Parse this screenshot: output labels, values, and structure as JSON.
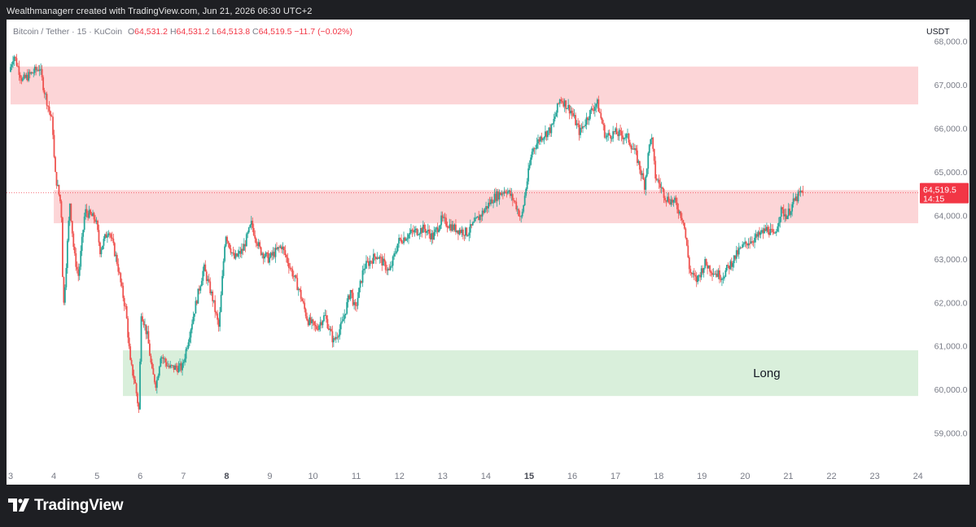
{
  "header": {
    "attribution": "Wealthmanagerr created with TradingView.com, Jun 21, 2026 06:30 UTC+2"
  },
  "legend": {
    "symbol": "Bitcoin / Tether · 15 · KuCoin",
    "o_label": "O",
    "o_value": "64,531.2",
    "h_label": "H",
    "h_value": "64,531.2",
    "l_label": "L",
    "l_value": "64,513.8",
    "c_label": "C",
    "c_value": "64,519.5",
    "change": "−11.7 (−0.02%)"
  },
  "price_axis": {
    "currency": "USDT",
    "last_price": "64,519.5",
    "countdown": "14:15"
  },
  "footer": {
    "brand": "TradingView"
  },
  "colors": {
    "up": "#26a69a",
    "down": "#ef5350",
    "resistance_zone": "#fcd5d7",
    "support_zone": "#d9efdb",
    "last_price_tag": "#f23645"
  },
  "chart_data": {
    "type": "candlestick",
    "ylim": [
      58300,
      68500
    ],
    "xlim": [
      3.0,
      24.1
    ],
    "y_ticks": [
      {
        "value": 59000,
        "label": "59,000.0"
      },
      {
        "value": 60000,
        "label": "60,000.0"
      },
      {
        "value": 61000,
        "label": "61,000.0"
      },
      {
        "value": 62000,
        "label": "62,000.0"
      },
      {
        "value": 63000,
        "label": "63,000.0"
      },
      {
        "value": 64000,
        "label": "64,000.0"
      },
      {
        "value": 65000,
        "label": "65,000.0"
      },
      {
        "value": 66000,
        "label": "66,000.0"
      },
      {
        "value": 67000,
        "label": "67,000.0"
      },
      {
        "value": 68000,
        "label": "68,000.0"
      }
    ],
    "x_ticks": [
      {
        "value": 3,
        "label": "3",
        "bold": false
      },
      {
        "value": 4,
        "label": "4",
        "bold": false
      },
      {
        "value": 5,
        "label": "5",
        "bold": false
      },
      {
        "value": 6,
        "label": "6",
        "bold": false
      },
      {
        "value": 7,
        "label": "7",
        "bold": false
      },
      {
        "value": 8,
        "label": "8",
        "bold": true
      },
      {
        "value": 9,
        "label": "9",
        "bold": false
      },
      {
        "value": 10,
        "label": "10",
        "bold": false
      },
      {
        "value": 11,
        "label": "11",
        "bold": false
      },
      {
        "value": 12,
        "label": "12",
        "bold": false
      },
      {
        "value": 13,
        "label": "13",
        "bold": false
      },
      {
        "value": 14,
        "label": "14",
        "bold": false
      },
      {
        "value": 15,
        "label": "15",
        "bold": true
      },
      {
        "value": 16,
        "label": "16",
        "bold": false
      },
      {
        "value": 17,
        "label": "17",
        "bold": false
      },
      {
        "value": 18,
        "label": "18",
        "bold": false
      },
      {
        "value": 19,
        "label": "19",
        "bold": false
      },
      {
        "value": 20,
        "label": "20",
        "bold": false
      },
      {
        "value": 21,
        "label": "21",
        "bold": false
      },
      {
        "value": 22,
        "label": "22",
        "bold": false
      },
      {
        "value": 23,
        "label": "23",
        "bold": false
      },
      {
        "value": 24,
        "label": "24",
        "bold": false
      }
    ],
    "last_price": 64519.5,
    "zones": [
      {
        "name": "resistance-upper",
        "x_start": 3.0,
        "x_end": 24.1,
        "y_low": 66550,
        "y_high": 67420,
        "color": "#fcd5d7"
      },
      {
        "name": "resistance-middle",
        "x_start": 4.0,
        "x_end": 24.1,
        "y_low": 63820,
        "y_high": 64580,
        "color": "#fcd5d7"
      },
      {
        "name": "support",
        "x_start": 5.6,
        "x_end": 24.1,
        "y_low": 59850,
        "y_high": 60900,
        "color": "#d9efdb"
      }
    ],
    "annotations": [
      {
        "text": "Long",
        "x": 20.5,
        "y": 60280
      }
    ],
    "price_path": [
      [
        3.0,
        67300
      ],
      [
        3.1,
        67700
      ],
      [
        3.3,
        67100
      ],
      [
        3.5,
        67250
      ],
      [
        3.7,
        67400
      ],
      [
        3.8,
        66900
      ],
      [
        4.0,
        66100
      ],
      [
        4.05,
        65000
      ],
      [
        4.2,
        64200
      ],
      [
        4.25,
        61800
      ],
      [
        4.4,
        64300
      ],
      [
        4.5,
        63100
      ],
      [
        4.6,
        62600
      ],
      [
        4.75,
        64100
      ],
      [
        5.0,
        63900
      ],
      [
        5.1,
        63200
      ],
      [
        5.3,
        63700
      ],
      [
        5.5,
        62900
      ],
      [
        5.6,
        62300
      ],
      [
        5.7,
        61800
      ],
      [
        5.8,
        60600
      ],
      [
        5.9,
        60200
      ],
      [
        6.0,
        59500
      ],
      [
        6.05,
        61800
      ],
      [
        6.2,
        61200
      ],
      [
        6.3,
        60400
      ],
      [
        6.4,
        60100
      ],
      [
        6.5,
        60800
      ],
      [
        6.7,
        60500
      ],
      [
        7.0,
        60500
      ],
      [
        7.3,
        61900
      ],
      [
        7.5,
        62800
      ],
      [
        7.7,
        62100
      ],
      [
        7.85,
        61400
      ],
      [
        8.0,
        63600
      ],
      [
        8.2,
        63000
      ],
      [
        8.4,
        63200
      ],
      [
        8.6,
        63800
      ],
      [
        8.8,
        63200
      ],
      [
        9.0,
        63000
      ],
      [
        9.3,
        63300
      ],
      [
        9.5,
        62800
      ],
      [
        9.7,
        62300
      ],
      [
        9.9,
        61600
      ],
      [
        10.1,
        61400
      ],
      [
        10.3,
        61700
      ],
      [
        10.5,
        61100
      ],
      [
        10.7,
        61500
      ],
      [
        10.9,
        62300
      ],
      [
        11.0,
        61800
      ],
      [
        11.2,
        62800
      ],
      [
        11.5,
        63100
      ],
      [
        11.8,
        62700
      ],
      [
        12.0,
        63400
      ],
      [
        12.3,
        63600
      ],
      [
        12.6,
        63700
      ],
      [
        12.8,
        63500
      ],
      [
        13.0,
        63900
      ],
      [
        13.3,
        63700
      ],
      [
        13.6,
        63600
      ],
      [
        13.9,
        64000
      ],
      [
        14.2,
        64400
      ],
      [
        14.5,
        64600
      ],
      [
        14.7,
        64300
      ],
      [
        14.85,
        63900
      ],
      [
        14.95,
        64600
      ],
      [
        15.1,
        65500
      ],
      [
        15.3,
        65800
      ],
      [
        15.55,
        66000
      ],
      [
        15.75,
        66700
      ],
      [
        16.0,
        66400
      ],
      [
        16.2,
        65900
      ],
      [
        16.4,
        66300
      ],
      [
        16.6,
        66600
      ],
      [
        16.8,
        65800
      ],
      [
        17.0,
        65900
      ],
      [
        17.3,
        65800
      ],
      [
        17.5,
        65400
      ],
      [
        17.7,
        64700
      ],
      [
        17.85,
        65900
      ],
      [
        17.95,
        64900
      ],
      [
        18.2,
        64400
      ],
      [
        18.4,
        64300
      ],
      [
        18.6,
        63900
      ],
      [
        18.75,
        62700
      ],
      [
        18.9,
        62500
      ],
      [
        19.1,
        62900
      ],
      [
        19.3,
        62700
      ],
      [
        19.5,
        62600
      ],
      [
        19.7,
        62900
      ],
      [
        19.9,
        63200
      ],
      [
        20.1,
        63400
      ],
      [
        20.3,
        63500
      ],
      [
        20.55,
        63700
      ],
      [
        20.7,
        63500
      ],
      [
        20.85,
        64100
      ],
      [
        21.0,
        64000
      ],
      [
        21.15,
        64300
      ],
      [
        21.3,
        64500
      ],
      [
        21.35,
        64519.5
      ]
    ]
  }
}
